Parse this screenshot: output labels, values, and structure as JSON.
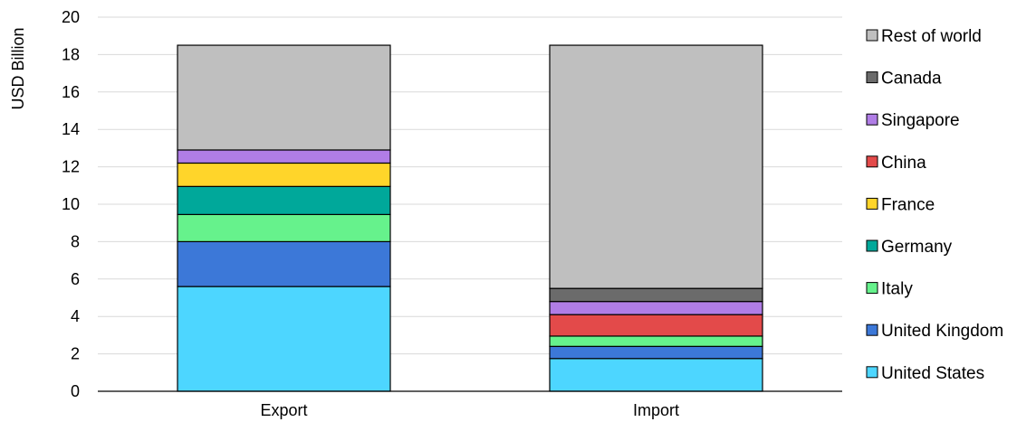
{
  "chart_data": {
    "type": "bar",
    "stacked": true,
    "title": "",
    "xlabel": "",
    "ylabel": "USD Billion",
    "ylim": [
      0,
      20
    ],
    "yticks": [
      "0",
      "2",
      "4",
      "6",
      "8",
      "10",
      "12",
      "14",
      "16",
      "18",
      "20"
    ],
    "grid": true,
    "legend_position": "right",
    "categories": [
      "Export",
      "Import"
    ],
    "series": [
      {
        "name": "United States",
        "color": "#4dd6ff",
        "values": [
          5.6,
          1.75
        ]
      },
      {
        "name": "United Kingdom",
        "color": "#3c78d8",
        "values": [
          2.4,
          0.65
        ]
      },
      {
        "name": "Italy",
        "color": "#66f28c",
        "values": [
          1.45,
          0.55
        ]
      },
      {
        "name": "Germany",
        "color": "#00a89a",
        "values": [
          1.5,
          0
        ]
      },
      {
        "name": "France",
        "color": "#ffd52a",
        "values": [
          1.25,
          0
        ]
      },
      {
        "name": "China",
        "color": "#e34a4a",
        "values": [
          0,
          1.15
        ]
      },
      {
        "name": "Singapore",
        "color": "#b07de6",
        "values": [
          0.7,
          0.7
        ]
      },
      {
        "name": "Canada",
        "color": "#6b6b6b",
        "values": [
          0,
          0.7
        ]
      },
      {
        "name": "Rest of world",
        "color": "#bfbfbf",
        "values": [
          5.6,
          13.0
        ]
      }
    ]
  }
}
